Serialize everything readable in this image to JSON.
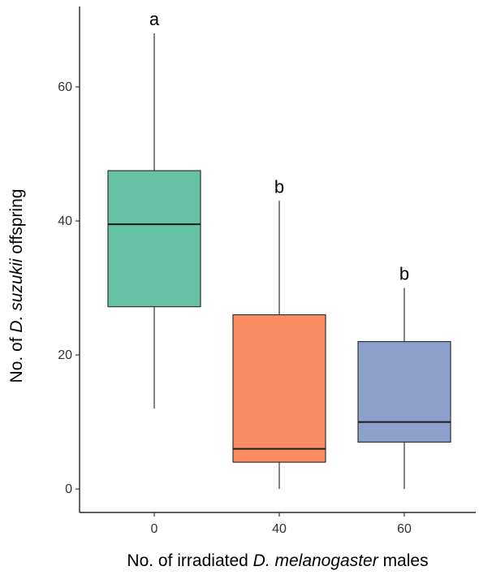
{
  "chart_data": {
    "type": "boxplot",
    "title": "",
    "xlabel_parts": [
      {
        "text": "No. of irradiated ",
        "italic": false
      },
      {
        "text": "D. melanogaster",
        "italic": true
      },
      {
        "text": " males",
        "italic": false
      }
    ],
    "ylabel_parts": [
      {
        "text": "No. of ",
        "italic": false
      },
      {
        "text": "D. suzukii",
        "italic": true
      },
      {
        "text": " offspring",
        "italic": false
      }
    ],
    "categories": [
      "0",
      "40",
      "60"
    ],
    "ylim": [
      -3.5,
      72
    ],
    "yticks": [
      0,
      20,
      40,
      60
    ],
    "grid": false,
    "legend": "none",
    "boxes": [
      {
        "category": "0",
        "min": 12,
        "q1": 27.2,
        "median": 39.5,
        "q3": 47.5,
        "max": 68,
        "color": "#66c2a5",
        "sig": "a"
      },
      {
        "category": "40",
        "min": 0,
        "q1": 4,
        "median": 6,
        "q3": 26,
        "max": 43,
        "color": "#fc8d62",
        "sig": "b"
      },
      {
        "category": "60",
        "min": 0,
        "q1": 7,
        "median": 10,
        "q3": 22,
        "max": 30,
        "color": "#8da0cb",
        "sig": "b"
      }
    ]
  }
}
